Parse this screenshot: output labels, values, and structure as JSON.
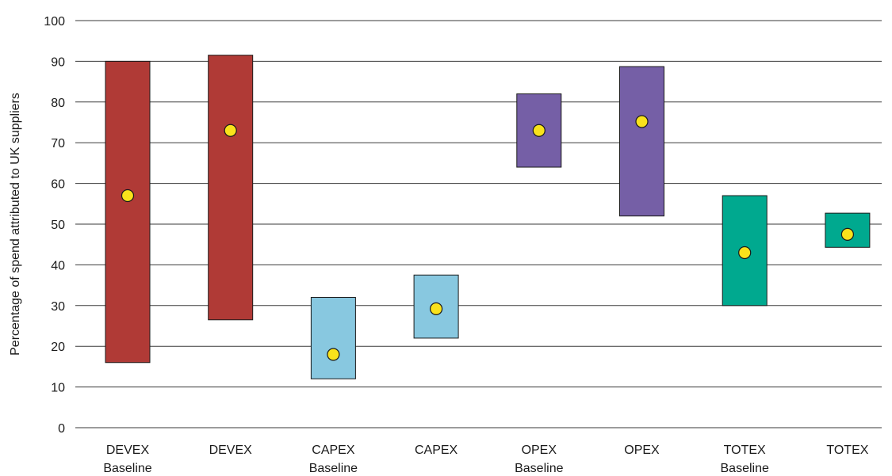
{
  "chart_data": {
    "type": "range-bar",
    "title": "",
    "xlabel": "",
    "ylabel": "Percentage of spend attributed to UK suppliers",
    "ylim": [
      0,
      100
    ],
    "y_ticks": [
      "0",
      "10",
      "20",
      "30",
      "40",
      "50",
      "60",
      "70",
      "80",
      "90",
      "100"
    ],
    "grid": true,
    "marker_color": "#f9e21b",
    "categories": [
      {
        "line1": "DEVEX",
        "line2": "Baseline",
        "low": 16,
        "high": 90,
        "point": 57,
        "color": "#b03a36"
      },
      {
        "line1": "DEVEX",
        "line2": "",
        "low": 26.5,
        "high": 91.5,
        "point": 73,
        "color": "#b03a36"
      },
      {
        "line1": "CAPEX",
        "line2": "Baseline",
        "low": 12,
        "high": 32,
        "point": 18,
        "color": "#88c8e0"
      },
      {
        "line1": "CAPEX",
        "line2": "",
        "low": 22,
        "high": 37.5,
        "point": 29.2,
        "color": "#88c8e0"
      },
      {
        "line1": "OPEX",
        "line2": "Baseline",
        "low": 64,
        "high": 82,
        "point": 73,
        "color": "#755fa6"
      },
      {
        "line1": "OPEX",
        "line2": "",
        "low": 52,
        "high": 88.7,
        "point": 75.2,
        "color": "#755fa6"
      },
      {
        "line1": "TOTEX",
        "line2": "Baseline",
        "low": 30,
        "high": 57,
        "point": 43,
        "color": "#00a98f"
      },
      {
        "line1": "TOTEX",
        "line2": "",
        "low": 44.3,
        "high": 52.7,
        "point": 47.5,
        "color": "#00a98f"
      }
    ]
  }
}
